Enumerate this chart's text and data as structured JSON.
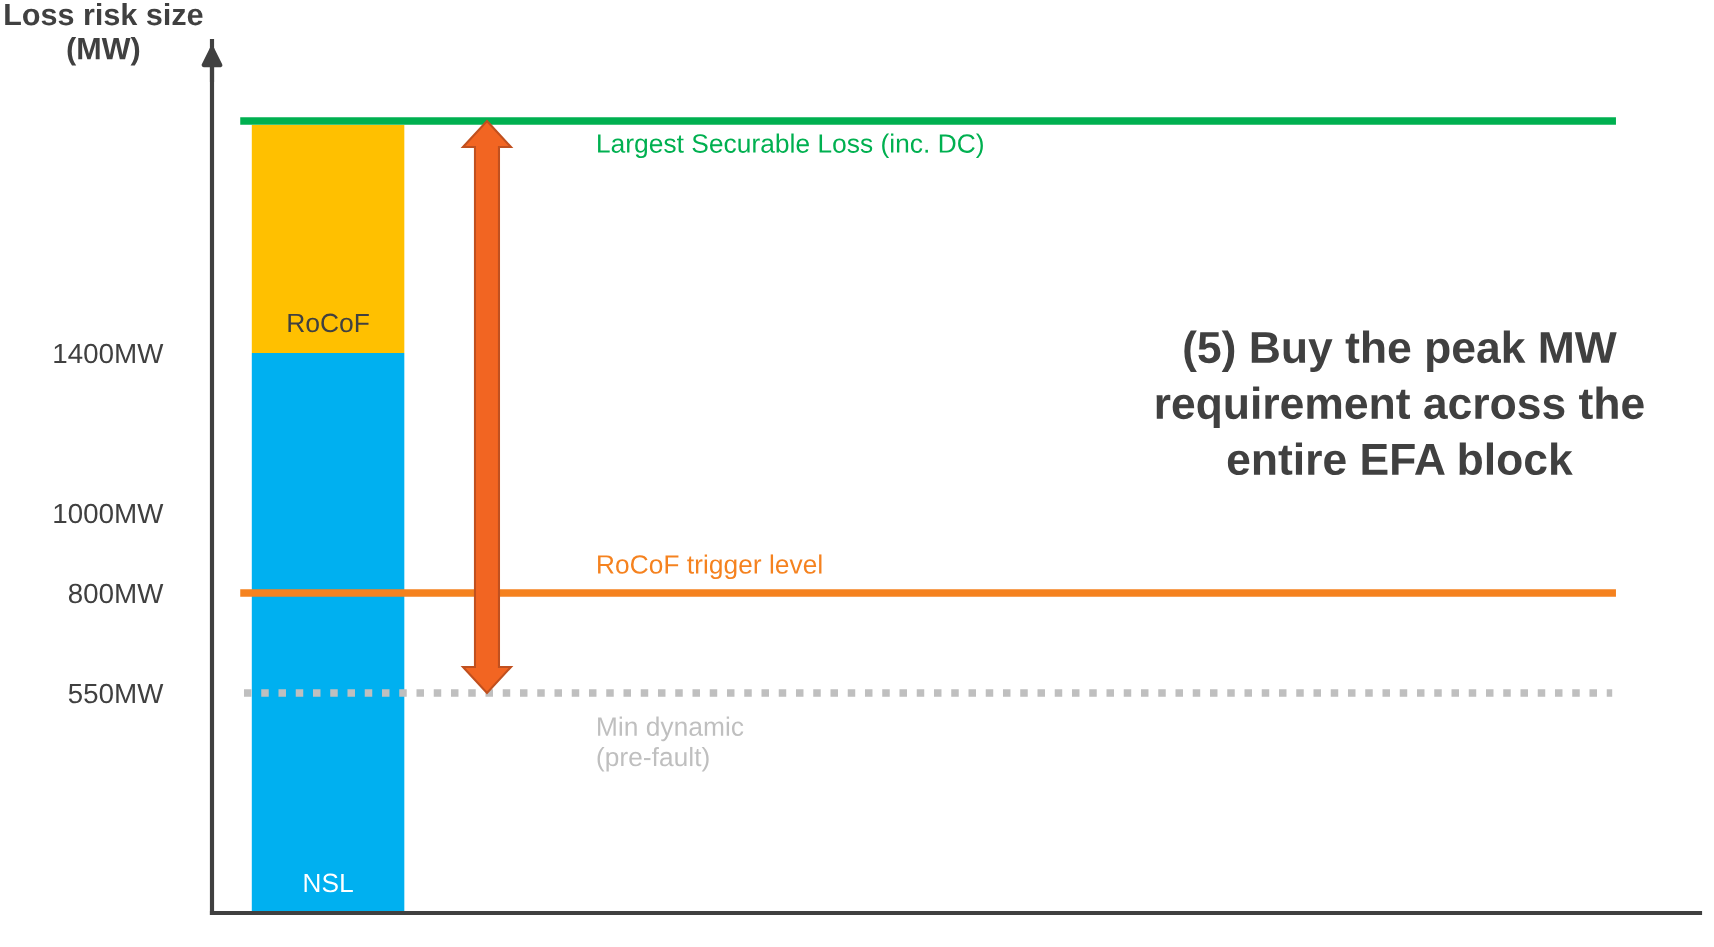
{
  "chart_data": {
    "type": "bar",
    "stacked": true,
    "ylabel": "Loss risk size\n(MW)",
    "categories": [
      null,
      null,
      null,
      null,
      null,
      null,
      null,
      null
    ],
    "series": [
      {
        "name": "NSL",
        "color": "#00b0f0",
        "values": [
          1400,
          null,
          null,
          null,
          null,
          null,
          null,
          null
        ]
      },
      {
        "name": "RoCoF",
        "color": "#ffc000",
        "values": [
          570,
          null,
          null,
          null,
          null,
          null,
          null,
          null
        ]
      }
    ],
    "ylim": [
      0,
      2180
    ],
    "yticks": [
      {
        "value": 550,
        "label": "550MW"
      },
      {
        "value": 800,
        "label": "800MW"
      },
      {
        "value": 1000,
        "label": "1000MW"
      },
      {
        "value": 1400,
        "label": "1400MW"
      }
    ],
    "tick_labels": "y",
    "ref_lines": [
      {
        "axis": "y",
        "value": 1980,
        "label": "Largest Securable Loss (inc. DC)",
        "color": "#00b050",
        "line_style": "solid"
      },
      {
        "axis": "y",
        "value": 800,
        "label": "RoCoF trigger level",
        "color": "#f5821f",
        "line_style": "solid"
      },
      {
        "axis": "y",
        "value": 550,
        "label": "Min dynamic\n(pre-fault)",
        "color": "#bfbfbf",
        "line_style": "dotted"
      }
    ],
    "annotations": [
      "(5) Buy the peak MW\nrequirement across the\nentire EFA block"
    ]
  }
}
